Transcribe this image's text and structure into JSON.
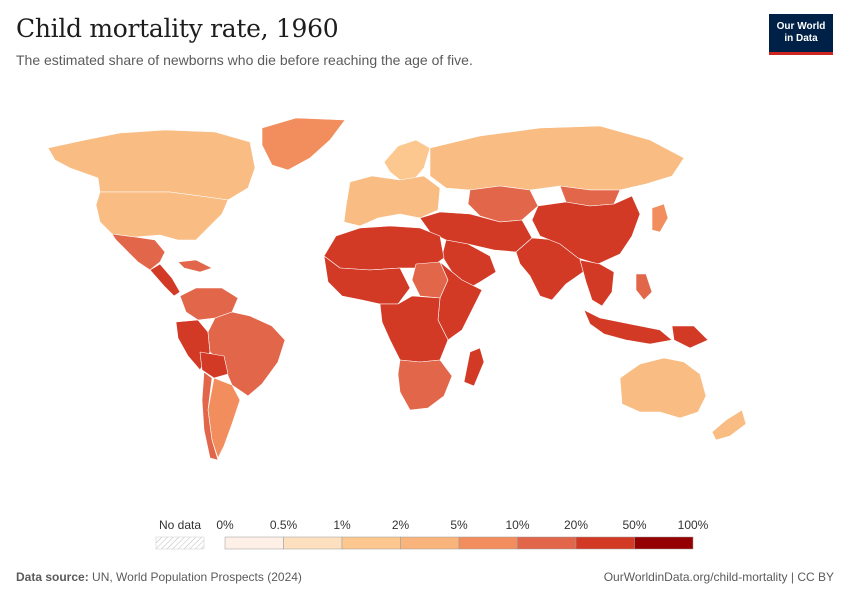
{
  "header": {
    "title": "Child mortality rate, 1960",
    "subtitle": "The estimated share of newborns who die before reaching the age of five."
  },
  "logo": {
    "line1": "Our World",
    "line2": "in Data"
  },
  "legend": {
    "no_data_label": "No data",
    "ticks": [
      "0%",
      "0.5%",
      "1%",
      "2%",
      "5%",
      "10%",
      "20%",
      "50%",
      "100%"
    ],
    "bins": [
      {
        "range": "0%–0.5%",
        "color": "#fef0e6"
      },
      {
        "range": "0.5%–1%",
        "color": "#fde0c0"
      },
      {
        "range": "1%–2%",
        "color": "#fcc88f"
      },
      {
        "range": "2%–5%",
        "color": "#f9b47c"
      },
      {
        "range": "5%–10%",
        "color": "#f28e5d"
      },
      {
        "range": "10%–20%",
        "color": "#e2664a"
      },
      {
        "range": "20%–50%",
        "color": "#d33a26"
      },
      {
        "range": "50%–100%",
        "color": "#950000"
      }
    ]
  },
  "map": {
    "regions": [
      {
        "name": "Canada",
        "color": "#f9bc82"
      },
      {
        "name": "United States",
        "color": "#f9bc82"
      },
      {
        "name": "Greenland",
        "color": "#f28e5d"
      },
      {
        "name": "Mexico",
        "color": "#e2664a"
      },
      {
        "name": "Central America",
        "color": "#d33a26"
      },
      {
        "name": "Caribbean",
        "color": "#e2664a"
      },
      {
        "name": "Colombia and Venezuela",
        "color": "#e2664a"
      },
      {
        "name": "Brazil",
        "color": "#e2664a"
      },
      {
        "name": "Peru",
        "color": "#d33a26"
      },
      {
        "name": "Bolivia",
        "color": "#d33a26"
      },
      {
        "name": "Argentina",
        "color": "#f28e5d"
      },
      {
        "name": "Chile",
        "color": "#e2664a"
      },
      {
        "name": "Western Europe",
        "color": "#f9bc82"
      },
      {
        "name": "Scandinavia",
        "color": "#fcc88f"
      },
      {
        "name": "Russia",
        "color": "#f9bc82"
      },
      {
        "name": "Central Asia",
        "color": "#e2664a"
      },
      {
        "name": "Turkey and Middle East",
        "color": "#d33a26"
      },
      {
        "name": "Arabian Peninsula",
        "color": "#d33a26"
      },
      {
        "name": "North Africa",
        "color": "#d33a26"
      },
      {
        "name": "West Africa",
        "color": "#d33a26"
      },
      {
        "name": "Sudan",
        "color": "#e2664a"
      },
      {
        "name": "East Africa",
        "color": "#d33a26"
      },
      {
        "name": "Central Africa",
        "color": "#d33a26"
      },
      {
        "name": "Southern Africa",
        "color": "#e2664a"
      },
      {
        "name": "Madagascar",
        "color": "#d33a26"
      },
      {
        "name": "South Asia",
        "color": "#d33a26"
      },
      {
        "name": "China",
        "color": "#d33a26"
      },
      {
        "name": "Mongolia",
        "color": "#e2664a"
      },
      {
        "name": "Southeast Asia",
        "color": "#d33a26"
      },
      {
        "name": "Japan",
        "color": "#f28e5d"
      },
      {
        "name": "Indonesia",
        "color": "#d33a26"
      },
      {
        "name": "Philippines",
        "color": "#e2664a"
      },
      {
        "name": "Papua New Guinea",
        "color": "#d33a26"
      },
      {
        "name": "Australia",
        "color": "#f9bc82"
      },
      {
        "name": "New Zealand",
        "color": "#f9bc82"
      }
    ]
  },
  "footer": {
    "source_label": "Data source:",
    "source_text": " UN, World Population Prospects (2024)",
    "credit": "OurWorldinData.org/child-mortality | CC BY"
  }
}
